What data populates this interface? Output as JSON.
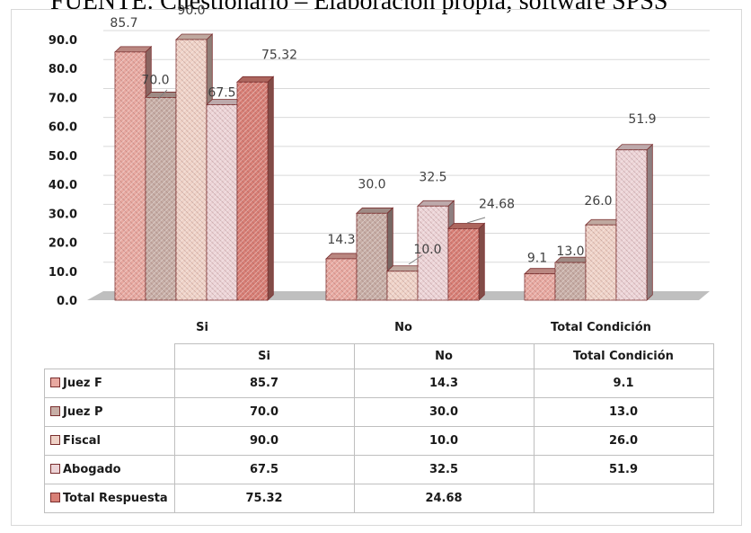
{
  "caption": "FUENTE: Cuestionario – Elaboración propia; software SPSS",
  "chart_data": {
    "type": "bar",
    "ylim": [
      0,
      90
    ],
    "yticks": [
      "0.0",
      "10.0",
      "20.0",
      "30.0",
      "40.0",
      "50.0",
      "60.0",
      "70.0",
      "80.0",
      "90.0"
    ],
    "categories": [
      "Si",
      "No",
      "Total Condición"
    ],
    "series": [
      {
        "name": "Juez F",
        "values": [
          85.7,
          14.3,
          9.1
        ],
        "labels": [
          "85.7",
          "14.3",
          "9.1"
        ],
        "color": "#e8a9a1"
      },
      {
        "name": "Juez P",
        "values": [
          70.0,
          30.0,
          13.0
        ],
        "labels": [
          "70.0",
          "30.0",
          "13.0"
        ],
        "color": "#c7aea6"
      },
      {
        "name": "Fiscal",
        "values": [
          90.0,
          10.0,
          26.0
        ],
        "labels": [
          "90.0",
          "10.0",
          "26.0"
        ],
        "color": "#efd2c7"
      },
      {
        "name": "Abogado",
        "values": [
          67.5,
          32.5,
          51.9
        ],
        "labels": [
          "67.5",
          "32.5",
          "51.9"
        ],
        "color": "#ecd3d6"
      },
      {
        "name": "Total Respuesta",
        "values": [
          75.32,
          24.68,
          null
        ],
        "labels": [
          "75.32",
          "24.68",
          ""
        ],
        "color": "#d87f76"
      }
    ],
    "grid": true,
    "legend": "table-below"
  },
  "table": {
    "headers": [
      "Si",
      "No",
      "Total Condición"
    ]
  }
}
